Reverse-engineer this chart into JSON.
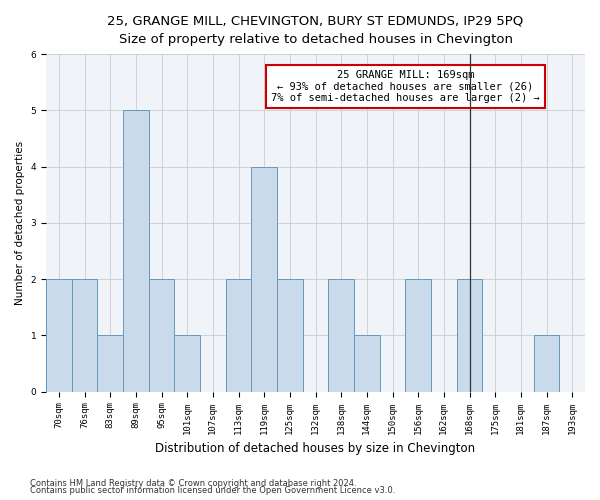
{
  "title_line1": "25, GRANGE MILL, CHEVINGTON, BURY ST EDMUNDS, IP29 5PQ",
  "title_line2": "Size of property relative to detached houses in Chevington",
  "xlabel": "Distribution of detached houses by size in Chevington",
  "ylabel": "Number of detached properties",
  "categories": [
    "70sqm",
    "76sqm",
    "83sqm",
    "89sqm",
    "95sqm",
    "101sqm",
    "107sqm",
    "113sqm",
    "119sqm",
    "125sqm",
    "132sqm",
    "138sqm",
    "144sqm",
    "150sqm",
    "156sqm",
    "162sqm",
    "168sqm",
    "175sqm",
    "181sqm",
    "187sqm",
    "193sqm"
  ],
  "values": [
    2,
    2,
    1,
    5,
    2,
    1,
    0,
    2,
    4,
    2,
    0,
    2,
    1,
    0,
    2,
    0,
    2,
    0,
    0,
    1,
    0
  ],
  "bar_color": "#c9daea",
  "bar_edge_color": "#6699bb",
  "vline_index": 16,
  "vline_color": "#333333",
  "annotation_text": "25 GRANGE MILL: 169sqm\n← 93% of detached houses are smaller (26)\n7% of semi-detached houses are larger (2) →",
  "box_color": "#cc0000",
  "ylim": [
    0,
    6
  ],
  "yticks": [
    0,
    1,
    2,
    3,
    4,
    5,
    6
  ],
  "footnote1": "Contains HM Land Registry data © Crown copyright and database right 2024.",
  "footnote2": "Contains public sector information licensed under the Open Government Licence v3.0.",
  "title1_fontsize": 9.5,
  "title2_fontsize": 8.5,
  "xlabel_fontsize": 8.5,
  "ylabel_fontsize": 7.5,
  "tick_fontsize": 6.5,
  "annot_fontsize": 7.5,
  "footnote_fontsize": 6,
  "bg_color": "#f0f4f8"
}
